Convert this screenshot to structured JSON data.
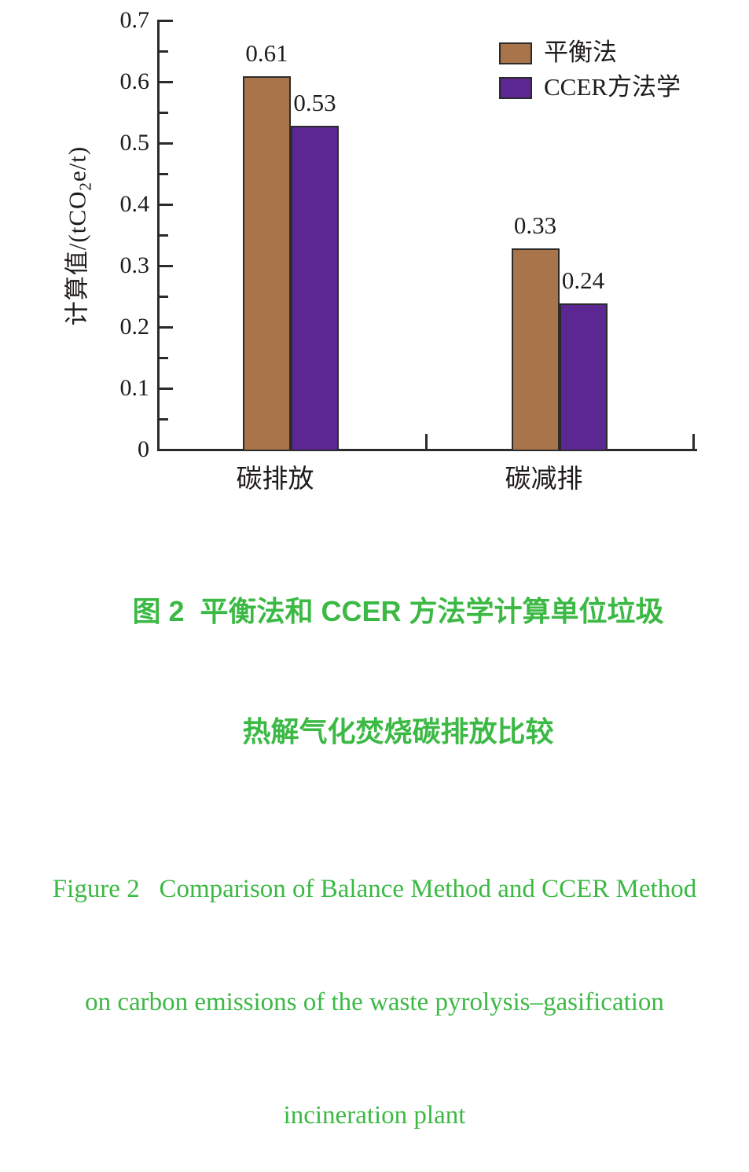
{
  "chart_data": {
    "type": "bar",
    "title": "",
    "categories": [
      "碳排放",
      "碳减排"
    ],
    "series": [
      {
        "name": "平衡法",
        "values": [
          0.61,
          0.33
        ],
        "color": "#A9744A"
      },
      {
        "name": "CCER方法学",
        "values": [
          0.53,
          0.24
        ],
        "color": "#5C2693"
      }
    ],
    "value_labels": [
      [
        "0.61",
        "0.33"
      ],
      [
        "0.53",
        "0.24"
      ]
    ],
    "ylabel_parts": {
      "pre": "计算值/(tCO",
      "sub": "2",
      "post": "e/t)"
    },
    "xlabel": "",
    "ylim": [
      0,
      0.7
    ],
    "ytick_labels": [
      "0",
      "0.1",
      "0.2",
      "0.3",
      "0.4",
      "0.5",
      "0.6",
      "0.7"
    ],
    "ytick_step": 0.1,
    "yminor_step": 0.05,
    "grid": "off",
    "legend_position": "top-right",
    "axis_color": "#2b2b2b",
    "text_color": "#1f1b1a",
    "bar_border_color": "#2b2b2b"
  },
  "figure": {
    "caption_zh": {
      "line1": "图 2  平衡法和 CCER 方法学计算单位垃圾",
      "line2": "热解气化焚烧碳排放比较",
      "color": "#3bb944"
    },
    "caption_en": {
      "line1": "Figure 2   Comparison of Balance Method and CCER Method",
      "line2": "on carbon emissions of the waste pyrolysis–gasification",
      "line3": "incineration plant",
      "color": "#3bb944"
    }
  }
}
